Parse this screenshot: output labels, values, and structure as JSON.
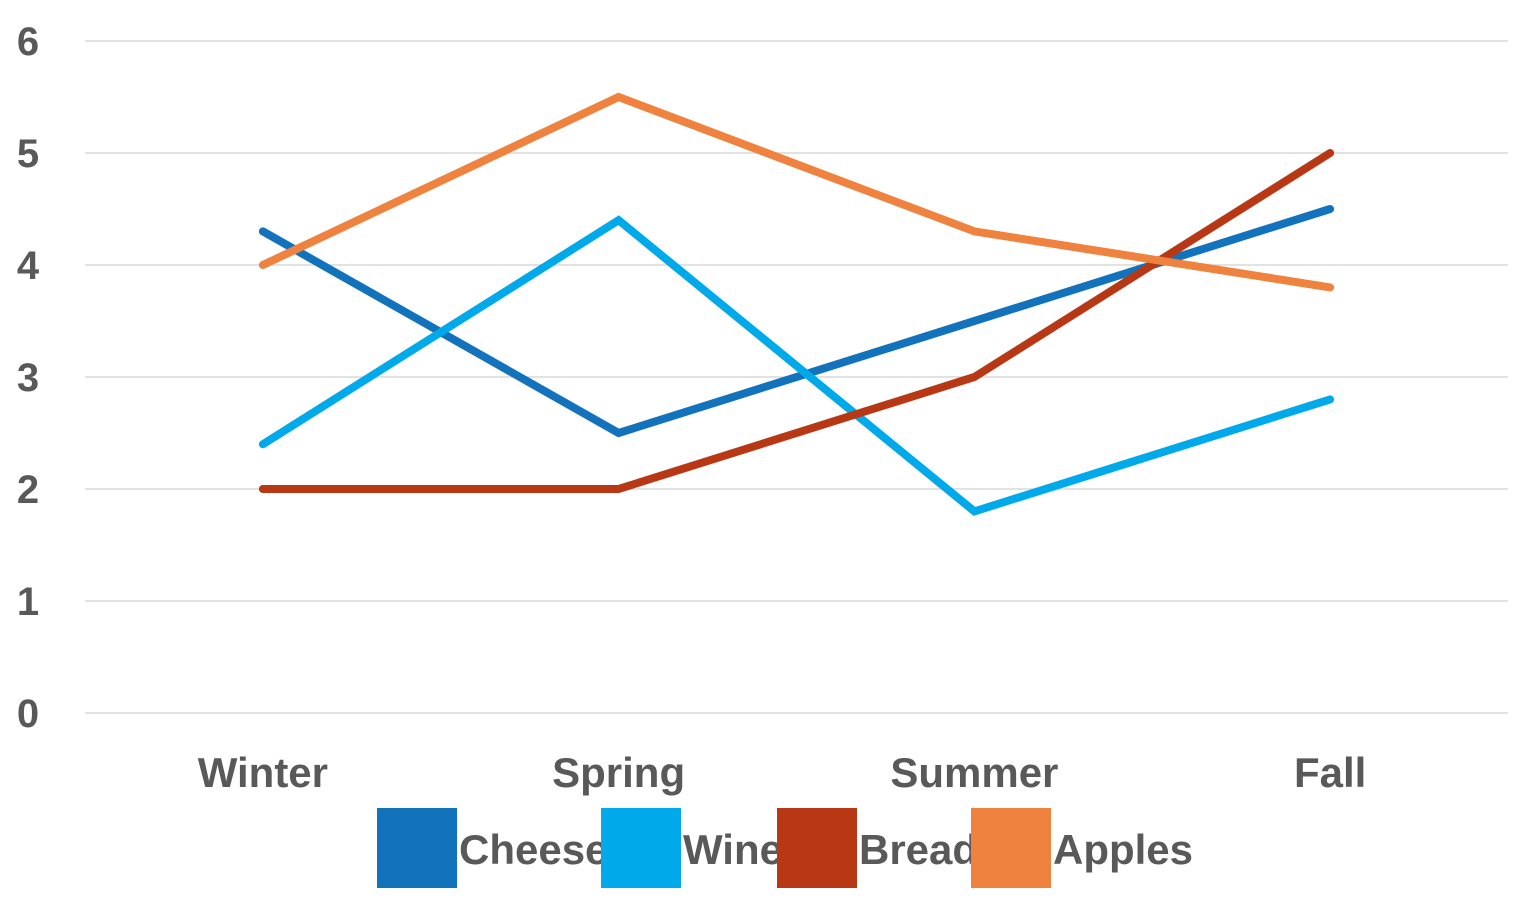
{
  "chart_data": {
    "type": "line",
    "title": "",
    "xlabel": "",
    "ylabel": "",
    "categories": [
      "Winter",
      "Spring",
      "Summer",
      "Fall"
    ],
    "ylim": [
      0,
      6
    ],
    "yticks": [
      "0",
      "1",
      "2",
      "3",
      "4",
      "5",
      "6"
    ],
    "grid": true,
    "legend_position": "bottom",
    "series": [
      {
        "name": "Cheese",
        "color": "#1372BC",
        "values": [
          4.3,
          2.5,
          3.5,
          4.5
        ]
      },
      {
        "name": "Wine",
        "color": "#00AAEA",
        "values": [
          2.4,
          4.4,
          1.8,
          2.8
        ]
      },
      {
        "name": "Bread",
        "color": "#B83816",
        "values": [
          2.0,
          2.0,
          3.0,
          5.0
        ]
      },
      {
        "name": "Apples",
        "color": "#EE823E",
        "values": [
          4.0,
          5.5,
          4.3,
          3.8
        ]
      }
    ]
  }
}
